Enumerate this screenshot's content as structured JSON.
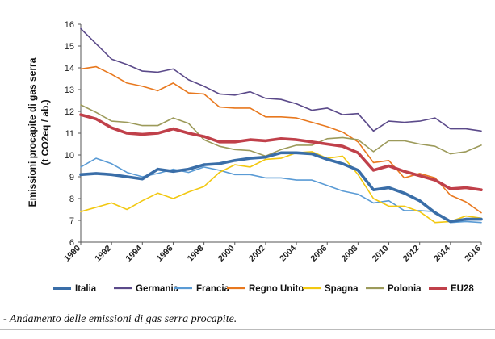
{
  "chart_data": {
    "type": "line",
    "title": "",
    "ylabel_line1": "Emissioni procapite di gas serra",
    "ylabel_line2": "(t CO2eq / ab.)",
    "xlabel": "",
    "ylim": [
      6,
      16
    ],
    "yticks": [
      "6",
      "7",
      "8",
      "9",
      "10",
      "11",
      "12",
      "13",
      "14",
      "15",
      "16"
    ],
    "xlim": [
      1990,
      2016
    ],
    "xticks": [
      "1990",
      "1992",
      "1994",
      "1996",
      "1998",
      "2000",
      "2002",
      "2004",
      "2006",
      "2008",
      "2010",
      "2012",
      "2014",
      "2016"
    ],
    "grid": false,
    "legend": "bottom",
    "x": [
      1990,
      1991,
      1992,
      1993,
      1994,
      1995,
      1996,
      1997,
      1998,
      1999,
      2000,
      2001,
      2002,
      2003,
      2004,
      2005,
      2006,
      2007,
      2008,
      2009,
      2010,
      2011,
      2012,
      2013,
      2014,
      2015,
      2016
    ],
    "series": [
      {
        "name": "Italia",
        "color": "#3a6ea8",
        "values": [
          9.1,
          9.15,
          9.1,
          9.0,
          8.9,
          9.35,
          9.25,
          9.35,
          9.55,
          9.6,
          9.75,
          9.85,
          9.9,
          10.1,
          10.1,
          10.05,
          9.8,
          9.6,
          9.3,
          8.4,
          8.5,
          8.25,
          7.9,
          7.35,
          6.95,
          7.05,
          7.05
        ]
      },
      {
        "name": "Germania",
        "color": "#5b4a8a",
        "values": [
          15.8,
          15.1,
          14.4,
          14.15,
          13.85,
          13.8,
          13.95,
          13.45,
          13.15,
          12.8,
          12.75,
          12.9,
          12.6,
          12.55,
          12.35,
          12.05,
          12.15,
          11.85,
          11.9,
          11.1,
          11.55,
          11.5,
          11.55,
          11.7,
          11.2,
          11.2,
          11.1
        ]
      },
      {
        "name": "Francia",
        "color": "#5a9bd5",
        "values": [
          9.45,
          9.85,
          9.6,
          9.2,
          9.0,
          9.15,
          9.35,
          9.2,
          9.45,
          9.3,
          9.1,
          9.1,
          8.95,
          8.95,
          8.85,
          8.85,
          8.6,
          8.35,
          8.2,
          7.8,
          7.9,
          7.45,
          7.45,
          7.4,
          6.9,
          6.95,
          6.9
        ]
      },
      {
        "name": "Regno Unito",
        "color": "#e8781e",
        "values": [
          13.95,
          14.05,
          13.7,
          13.3,
          13.15,
          12.95,
          13.3,
          12.85,
          12.8,
          12.2,
          12.15,
          12.15,
          11.75,
          11.75,
          11.7,
          11.5,
          11.3,
          11.05,
          10.6,
          9.65,
          9.75,
          8.95,
          9.15,
          8.95,
          8.15,
          7.85,
          7.35
        ]
      },
      {
        "name": "Spagna",
        "color": "#f2c811",
        "values": [
          7.4,
          7.6,
          7.8,
          7.5,
          7.9,
          8.25,
          8.0,
          8.3,
          8.55,
          9.2,
          9.55,
          9.45,
          9.8,
          9.85,
          10.1,
          10.15,
          9.85,
          9.95,
          9.1,
          8.0,
          7.65,
          7.65,
          7.4,
          6.9,
          6.95,
          7.2,
          7.1
        ]
      },
      {
        "name": "Polonia",
        "color": "#9c9a5a",
        "values": [
          12.3,
          11.95,
          11.55,
          11.5,
          11.35,
          11.35,
          11.7,
          11.45,
          10.7,
          10.4,
          10.25,
          10.2,
          9.95,
          10.25,
          10.45,
          10.45,
          10.75,
          10.8,
          10.7,
          10.15,
          10.65,
          10.65,
          10.5,
          10.4,
          10.05,
          10.15,
          10.45
        ]
      },
      {
        "name": "EU28",
        "color": "#c0404a",
        "values": [
          11.85,
          11.65,
          11.25,
          11.0,
          10.95,
          11.0,
          11.2,
          11.0,
          10.85,
          10.6,
          10.6,
          10.7,
          10.65,
          10.75,
          10.7,
          10.6,
          10.5,
          10.4,
          10.1,
          9.3,
          9.5,
          9.25,
          9.05,
          8.85,
          8.45,
          8.5,
          8.4
        ]
      }
    ]
  },
  "caption": "- Andamento delle emissioni di gas serra procapite."
}
